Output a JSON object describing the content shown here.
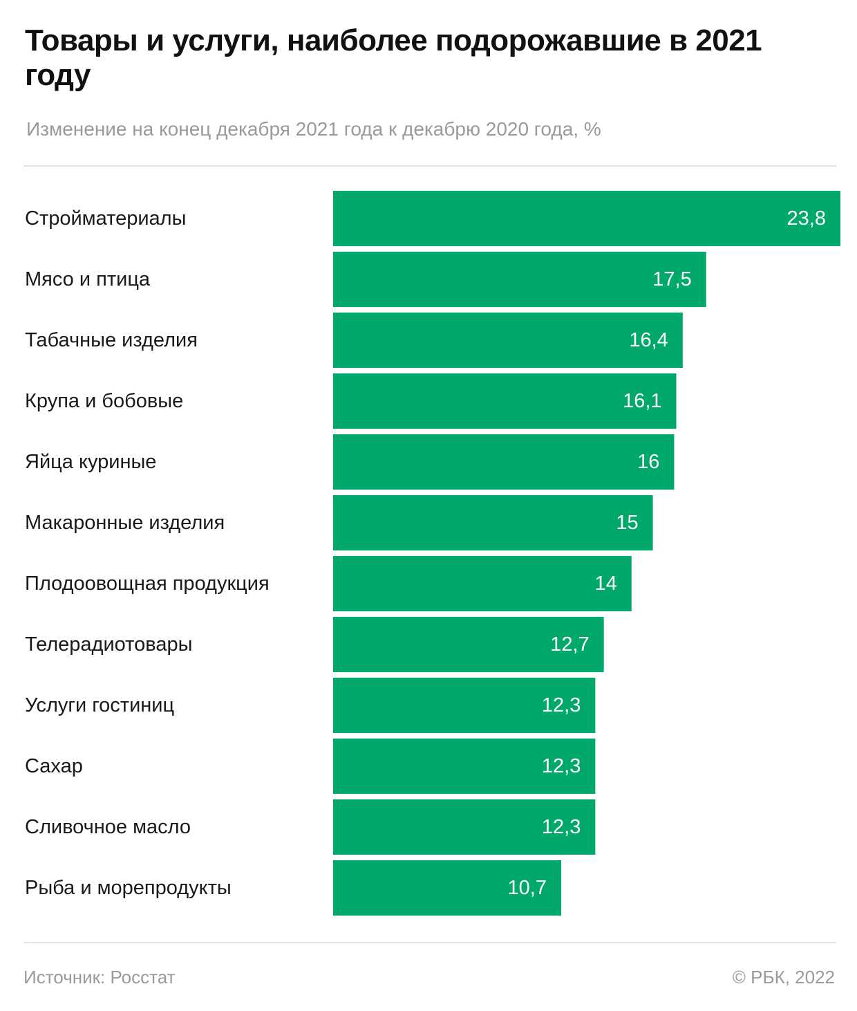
{
  "header": {
    "title": "Товары и услуги, наиболее подорожавшие в 2021 году",
    "subtitle": "Изменение на конец декабря 2021 года к декабрю 2020 года, %"
  },
  "footer": {
    "source": "Источник: Росстат",
    "copyright": "© РБК, 2022"
  },
  "colors": {
    "bar": "#00a86b"
  },
  "chart_data": {
    "type": "bar",
    "orientation": "horizontal",
    "categories": [
      "Стройматериалы",
      "Мясо и птица",
      "Табачные изделия",
      "Крупа и бобовые",
      "Яйца куриные",
      "Макаронные изделия",
      "Плодоовощная продукция",
      "Телерадиотовары",
      "Услуги гостиниц",
      "Сахар",
      "Сливочное масло",
      "Рыба и морепродукты"
    ],
    "values": [
      23.8,
      17.5,
      16.4,
      16.1,
      16,
      15,
      14,
      12.7,
      12.3,
      12.3,
      12.3,
      10.7
    ],
    "value_labels": [
      "23,8",
      "17,5",
      "16,4",
      "16,1",
      "16",
      "15",
      "14",
      "12,7",
      "12,3",
      "12,3",
      "12,3",
      "10,7"
    ],
    "xlim": [
      0,
      23.8
    ],
    "grid": false,
    "legend": "none"
  }
}
